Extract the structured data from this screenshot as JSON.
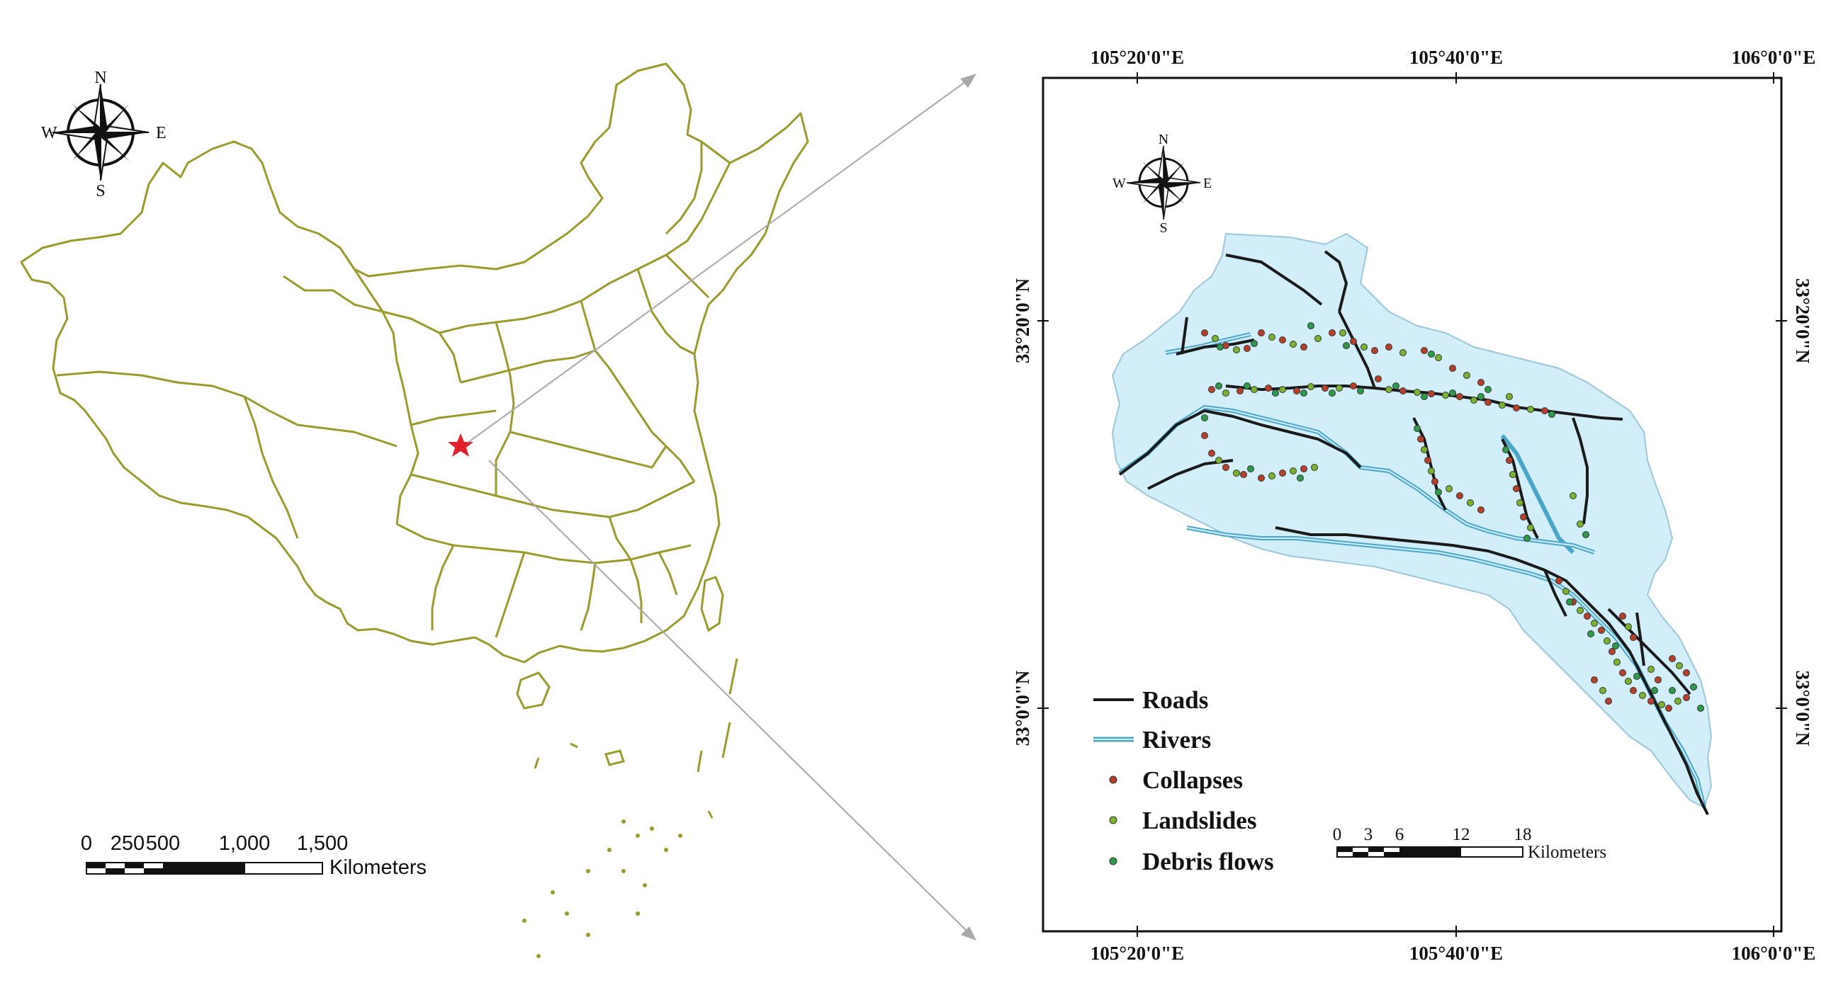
{
  "overview_map": {
    "compass": {
      "n": "N",
      "s": "S",
      "e": "E",
      "w": "W"
    },
    "scale_bar": {
      "ticks": [
        "0",
        "250",
        "500",
        "1,000",
        "1,500"
      ],
      "unit": "Kilometers"
    },
    "province_line_color": "#9b9b2d",
    "location_marker_color": "#e0202a",
    "location_marker_icon": "star-icon"
  },
  "study_map": {
    "top_coords": [
      "105°20'0\"E",
      "105°40'0\"E",
      "106°0'0\"E"
    ],
    "bottom_coords": [
      "105°20'0\"E",
      "105°40'0\"E",
      "106°0'0\"E"
    ],
    "left_coords": [
      "33°20'0\"N",
      "33°0'0\"N"
    ],
    "right_coords": [
      "33°20'0\"N",
      "33°0'0\"N"
    ],
    "compass": {
      "n": "N",
      "s": "S",
      "e": "E",
      "w": "W"
    },
    "legend": [
      {
        "label": "Roads",
        "symbol": "road-line",
        "color": "#1a1a1a"
      },
      {
        "label": "Rivers",
        "symbol": "river-line",
        "color": "#4aa6c8"
      },
      {
        "label": "Collapses",
        "symbol": "dot",
        "color": "#b8402a"
      },
      {
        "label": "Landslides",
        "symbol": "dot",
        "color": "#7ab32e"
      },
      {
        "label": "Debris flows",
        "symbol": "dot",
        "color": "#2e9a4a"
      }
    ],
    "scale_bar": {
      "ticks": [
        "0",
        "3",
        "6",
        "12",
        "18"
      ],
      "unit": "Kilometers"
    },
    "basin_fill": "#d2eef8"
  }
}
